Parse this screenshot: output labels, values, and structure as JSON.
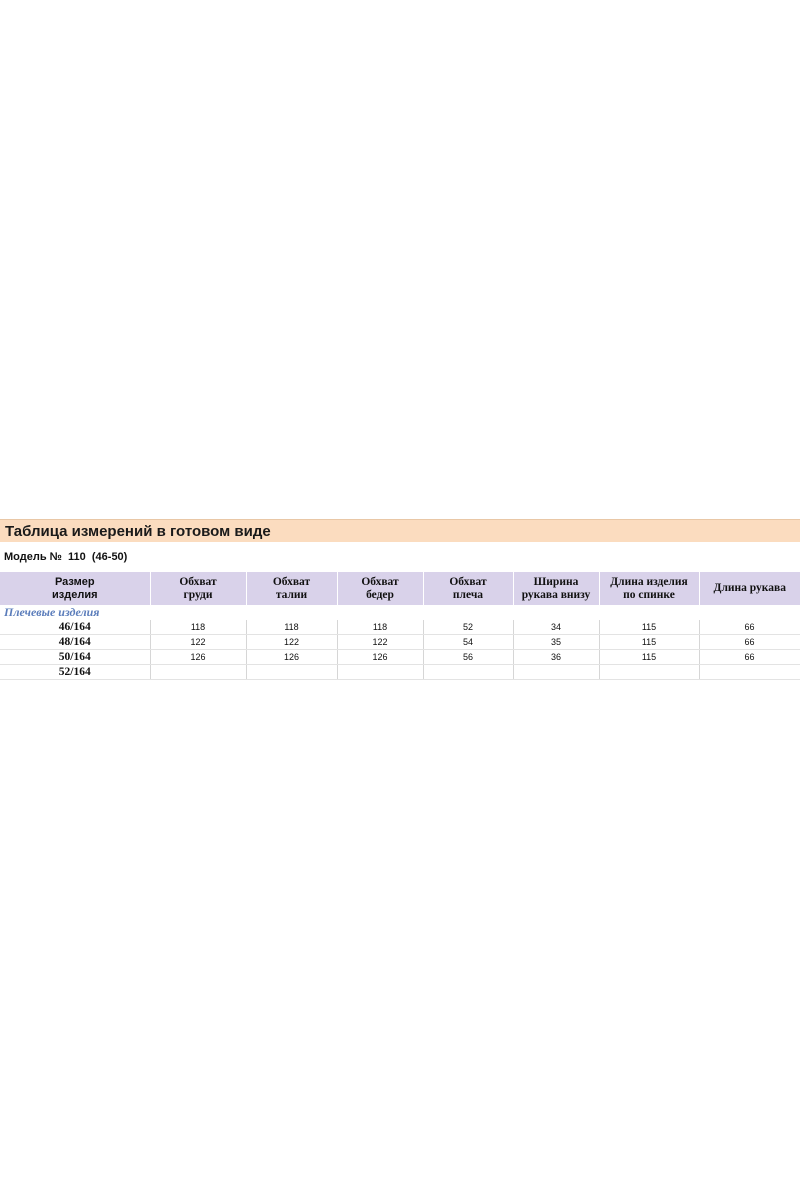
{
  "title": "Таблица измерений в готовом виде",
  "model_label": "Модель №  110  (46-50)",
  "headers": [
    "Размер\nизделия",
    "Обхват\nгруди",
    "Обхват\nталии",
    "Обхват\nбедер",
    "Обхват\nплеча",
    "Ширина\nрукава внизу",
    "Длина изделия\nпо спинке",
    "Длина рукава"
  ],
  "group_label": "Плечевые изделия",
  "rows": [
    {
      "size": "46/164",
      "values": [
        "118",
        "118",
        "118",
        "52",
        "34",
        "115",
        "66"
      ]
    },
    {
      "size": "48/164",
      "values": [
        "122",
        "122",
        "122",
        "54",
        "35",
        "115",
        "66"
      ]
    },
    {
      "size": "50/164",
      "values": [
        "126",
        "126",
        "126",
        "56",
        "36",
        "115",
        "66"
      ]
    },
    {
      "size": "52/164",
      "values": [
        "",
        "",
        "",
        "",
        "",
        "",
        ""
      ]
    }
  ],
  "colors": {
    "title_bg": "#fbdcbf",
    "header_bg": "#d9d2ea",
    "group_text": "#5b7dbb"
  }
}
